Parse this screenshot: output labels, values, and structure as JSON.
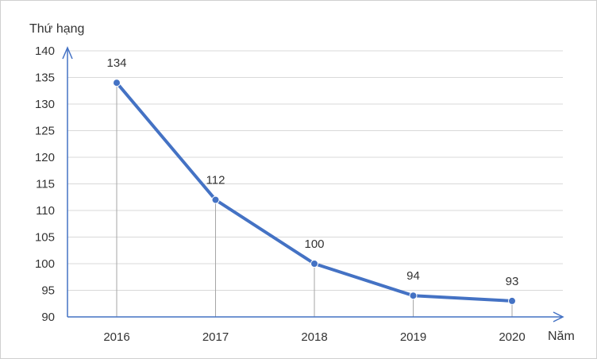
{
  "chart_data": {
    "type": "line",
    "title": "",
    "ylabel": "Thứ hạng",
    "xlabel": "Năm",
    "categories": [
      "2016",
      "2017",
      "2018",
      "2019",
      "2020"
    ],
    "series": [
      {
        "values": [
          134,
          112,
          100,
          94,
          93
        ]
      }
    ],
    "data_labels": [
      "134",
      "112",
      "100",
      "94",
      "93"
    ],
    "ylim": [
      90,
      140
    ],
    "yticks": [
      "90",
      "95",
      "100",
      "105",
      "110",
      "115",
      "120",
      "125",
      "130",
      "135",
      "140"
    ],
    "grid": true,
    "drop_lines": true,
    "line_color": "#4472C4",
    "axis_color": "#4472C4",
    "grid_color": "#d9d9d9"
  }
}
